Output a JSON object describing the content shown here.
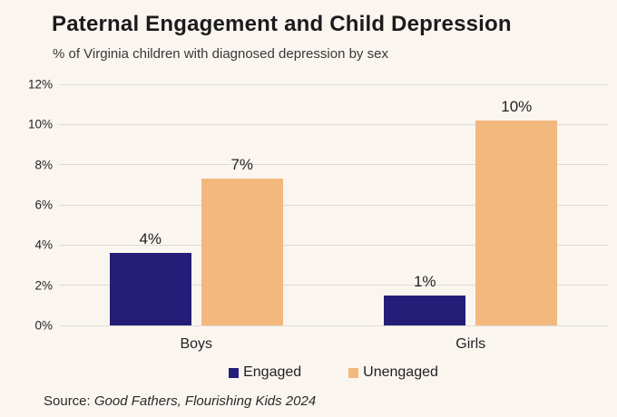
{
  "header": {
    "title": "Paternal Engagement and Child Depression",
    "subtitle": "% of Virginia children with diagnosed depression by sex"
  },
  "chart_data": {
    "type": "bar",
    "title": "Paternal Engagement and Child Depression",
    "subtitle": "% of Virginia children with diagnosed depression by sex",
    "categories": [
      "Boys",
      "Girls"
    ],
    "series": [
      {
        "name": "Engaged",
        "color": "#251e78",
        "values": [
          3.6,
          1.5
        ],
        "labels": [
          "4%",
          "1%"
        ]
      },
      {
        "name": "Unengaged",
        "color": "#f2b87e",
        "values": [
          7.3,
          10.2
        ],
        "labels": [
          "7%",
          "10%"
        ]
      }
    ],
    "ylim": [
      0,
      12
    ],
    "yticks": [
      "0%",
      "2%",
      "4%",
      "6%",
      "8%",
      "10%",
      "12%"
    ],
    "grid": true,
    "legend_position": "bottom",
    "xlabel": "",
    "ylabel": ""
  },
  "source": {
    "prefix": "Source: ",
    "citation": "Good Fathers, Flourishing Kids 2024"
  },
  "colors": {
    "background": "#fbf5ef",
    "engaged": "#251e78",
    "unengaged": "#f2b87e",
    "gridline": "#dedcd6",
    "title_text": "#1b1b1d",
    "body_text": "#232327"
  }
}
